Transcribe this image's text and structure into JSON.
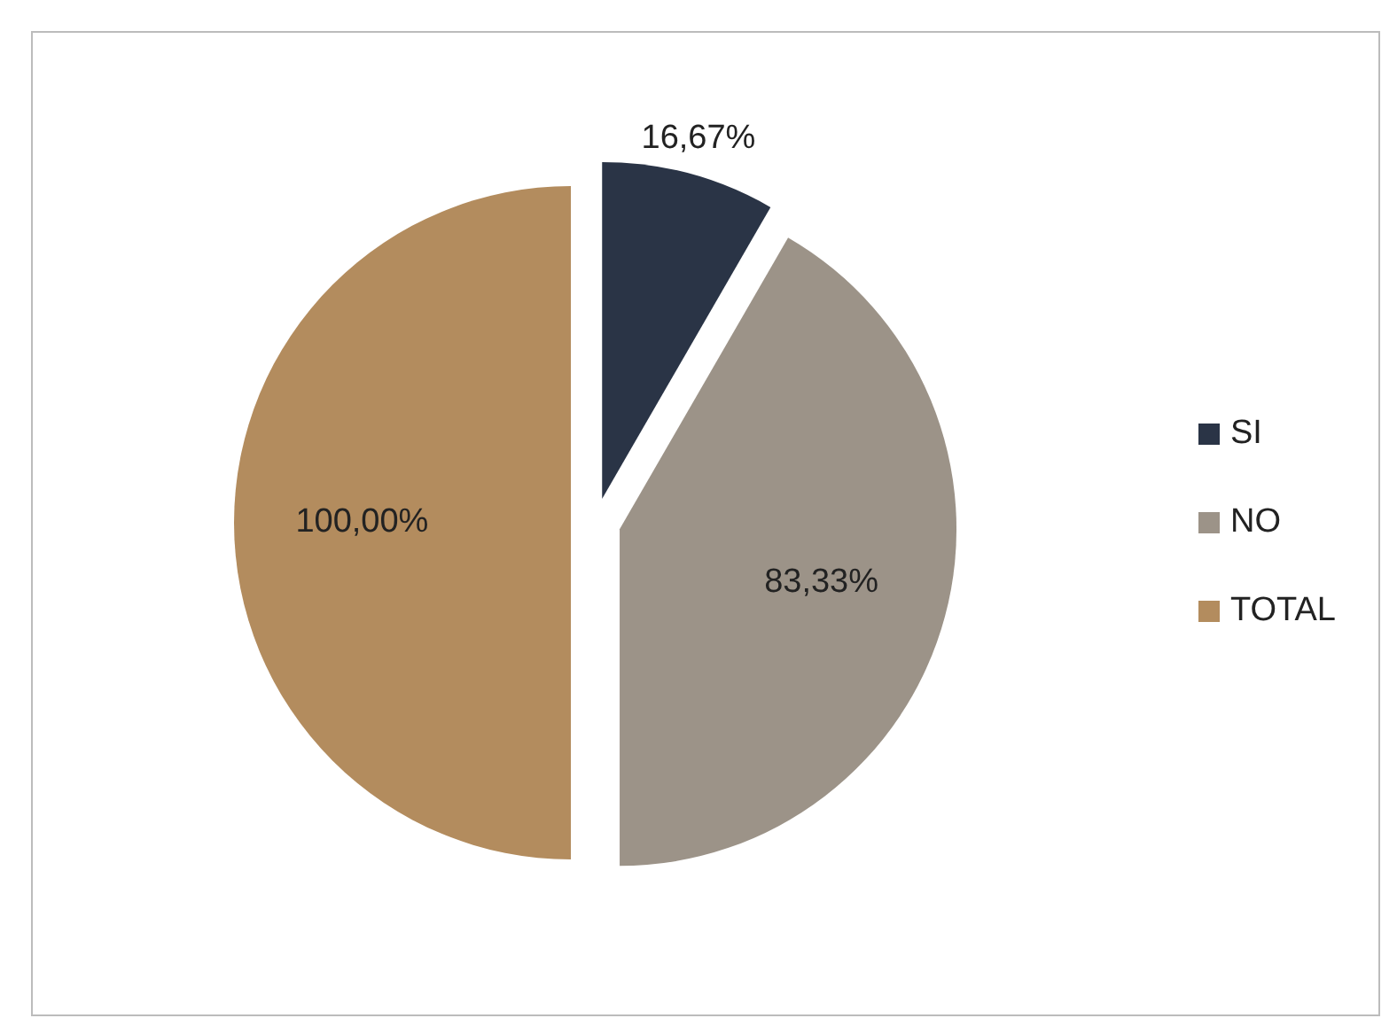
{
  "chart_data": {
    "type": "pie",
    "categories": [
      "SI",
      "NO",
      "TOTAL"
    ],
    "values": [
      16.67,
      83.33,
      100
    ],
    "colors": [
      "#2a3446",
      "#9c9388",
      "#b38c5e"
    ],
    "value_labels": [
      "16,67%",
      "83,33%",
      "100,00%"
    ],
    "legend": "right"
  }
}
